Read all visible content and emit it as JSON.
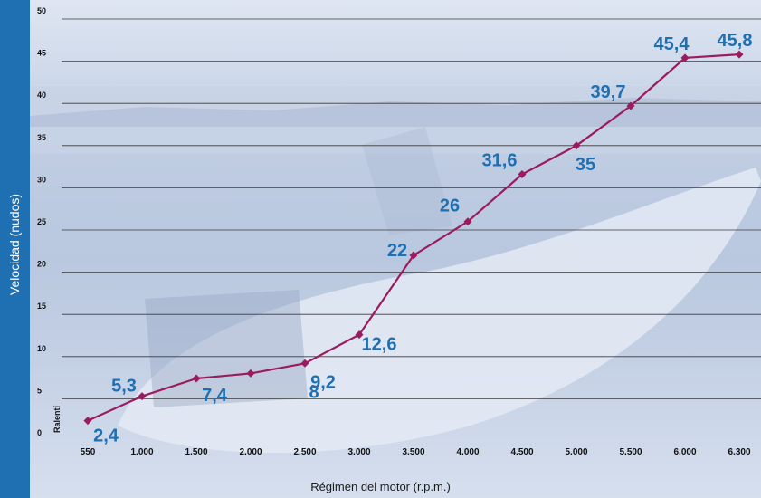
{
  "chart_data": {
    "type": "line",
    "ylabel": "Velocidad (nudos)",
    "xlabel": "Régimen del motor (r.p.m.)",
    "annotation": "Ralentí",
    "categories": [
      "550",
      "1.000",
      "1.500",
      "2.000",
      "2.500",
      "3.000",
      "3.500",
      "4.000",
      "4.500",
      "5.000",
      "5.500",
      "6.000",
      "6.300"
    ],
    "values": [
      2.4,
      5.3,
      7.4,
      8,
      9.2,
      12.6,
      22,
      26,
      31.6,
      35,
      39.7,
      45.4,
      45.8
    ],
    "data_labels": [
      "2,4",
      "5,3",
      "7,4",
      "8",
      "9,2",
      "12,6",
      "22",
      "26",
      "31,6",
      "35",
      "39,7",
      "45,4",
      "45,8"
    ],
    "ylim": [
      0,
      50
    ],
    "yticks": [
      "0",
      "5",
      "10",
      "15",
      "20",
      "25",
      "30",
      "35",
      "40",
      "45",
      "50"
    ],
    "grid": true,
    "line_color": "#9b1b5f",
    "label_color": "#1f6fb3",
    "axis_band_color": "#1f6fb3"
  }
}
